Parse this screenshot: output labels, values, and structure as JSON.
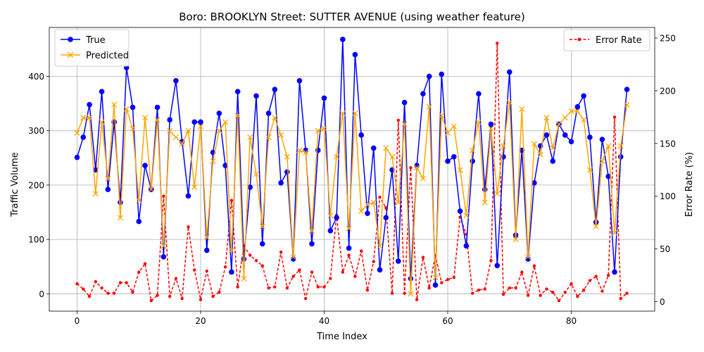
{
  "chart_data": {
    "type": "line",
    "title": "Boro: BROOKLYN Street: SUTTER AVENUE (using weather feature)",
    "xlabel": "Time Index",
    "ylabel": "Traffic Volume",
    "y2label": "Error Rate (%)",
    "xlim": [
      -4.5,
      93.5
    ],
    "ylim": [
      -32,
      490
    ],
    "y2lim": [
      -9,
      260
    ],
    "x_ticks": [
      0,
      20,
      40,
      60,
      80
    ],
    "y_ticks": [
      0,
      100,
      200,
      300,
      400
    ],
    "y2_ticks": [
      0,
      50,
      100,
      150,
      200,
      250
    ],
    "grid": true,
    "legend_left": "upper-left",
    "legend_right": "upper-right",
    "series": [
      {
        "name": "True",
        "axis": "left",
        "color": "#0000ff",
        "marker": "circle",
        "linestyle": "solid",
        "values": [
          251,
          288,
          348,
          228,
          372,
          192,
          316,
          168,
          416,
          343,
          133,
          236,
          192,
          343,
          68,
          320,
          392,
          280,
          180,
          316,
          316,
          80,
          260,
          332,
          236,
          40,
          372,
          64,
          196,
          364,
          92,
          332,
          376,
          204,
          224,
          64,
          392,
          264,
          92,
          264,
          360,
          116,
          140,
          468,
          84,
          440,
          292,
          148,
          268,
          44,
          140,
          228,
          60,
          352,
          28,
          236,
          368,
          400,
          16,
          404,
          244,
          252,
          152,
          88,
          244,
          368,
          192,
          312,
          52,
          252,
          408,
          108,
          264,
          64,
          204,
          272,
          292,
          244,
          312,
          292,
          280,
          344,
          364,
          288,
          132,
          284,
          216,
          40,
          252,
          376
        ]
      },
      {
        "name": "Predicted",
        "axis": "left",
        "color": "#ffa500",
        "marker": "x",
        "linestyle": "solid",
        "values": [
          296,
          324,
          324,
          184,
          316,
          212,
          348,
          140,
          340,
          304,
          172,
          324,
          192,
          320,
          88,
          300,
          288,
          276,
          300,
          196,
          308,
          104,
          244,
          300,
          316,
          80,
          328,
          28,
          288,
          220,
          124,
          288,
          324,
          292,
          252,
          68,
          264,
          260,
          116,
          300,
          304,
          144,
          252,
          332,
          120,
          332,
          152,
          164,
          168,
          88,
          268,
          252,
          168,
          312,
          0,
          232,
          212,
          344,
          30,
          328,
          296,
          308,
          228,
          144,
          264,
          316,
          168,
          304,
          184,
          272,
          352,
          100,
          340,
          68,
          276,
          256,
          324,
          268,
          312,
          324,
          336,
          336,
          320,
          228,
          124,
          244,
          272,
          112,
          272,
          348
        ]
      },
      {
        "name": "Error Rate",
        "axis": "right",
        "color": "#ff0000",
        "marker": "small-circle",
        "linestyle": "dashed",
        "values": [
          17,
          12,
          5,
          19,
          13,
          8,
          8,
          18,
          18,
          9,
          28,
          36,
          1,
          6,
          100,
          5,
          22,
          3,
          71,
          30,
          2,
          29,
          5,
          9,
          33,
          96,
          14,
          53,
          44,
          39,
          34,
          13,
          14,
          47,
          13,
          24,
          30,
          3,
          28,
          14,
          14,
          22,
          82,
          28,
          44,
          24,
          48,
          11,
          38,
          99,
          89,
          8,
          172,
          8,
          127,
          2,
          42,
          13,
          44,
          18,
          21,
          23,
          80,
          64,
          8,
          11,
          12,
          39,
          245,
          7,
          13,
          13,
          28,
          6,
          34,
          6,
          12,
          9,
          1,
          9,
          17,
          5,
          11,
          20,
          24,
          10,
          25,
          175,
          3,
          8
        ]
      }
    ]
  }
}
